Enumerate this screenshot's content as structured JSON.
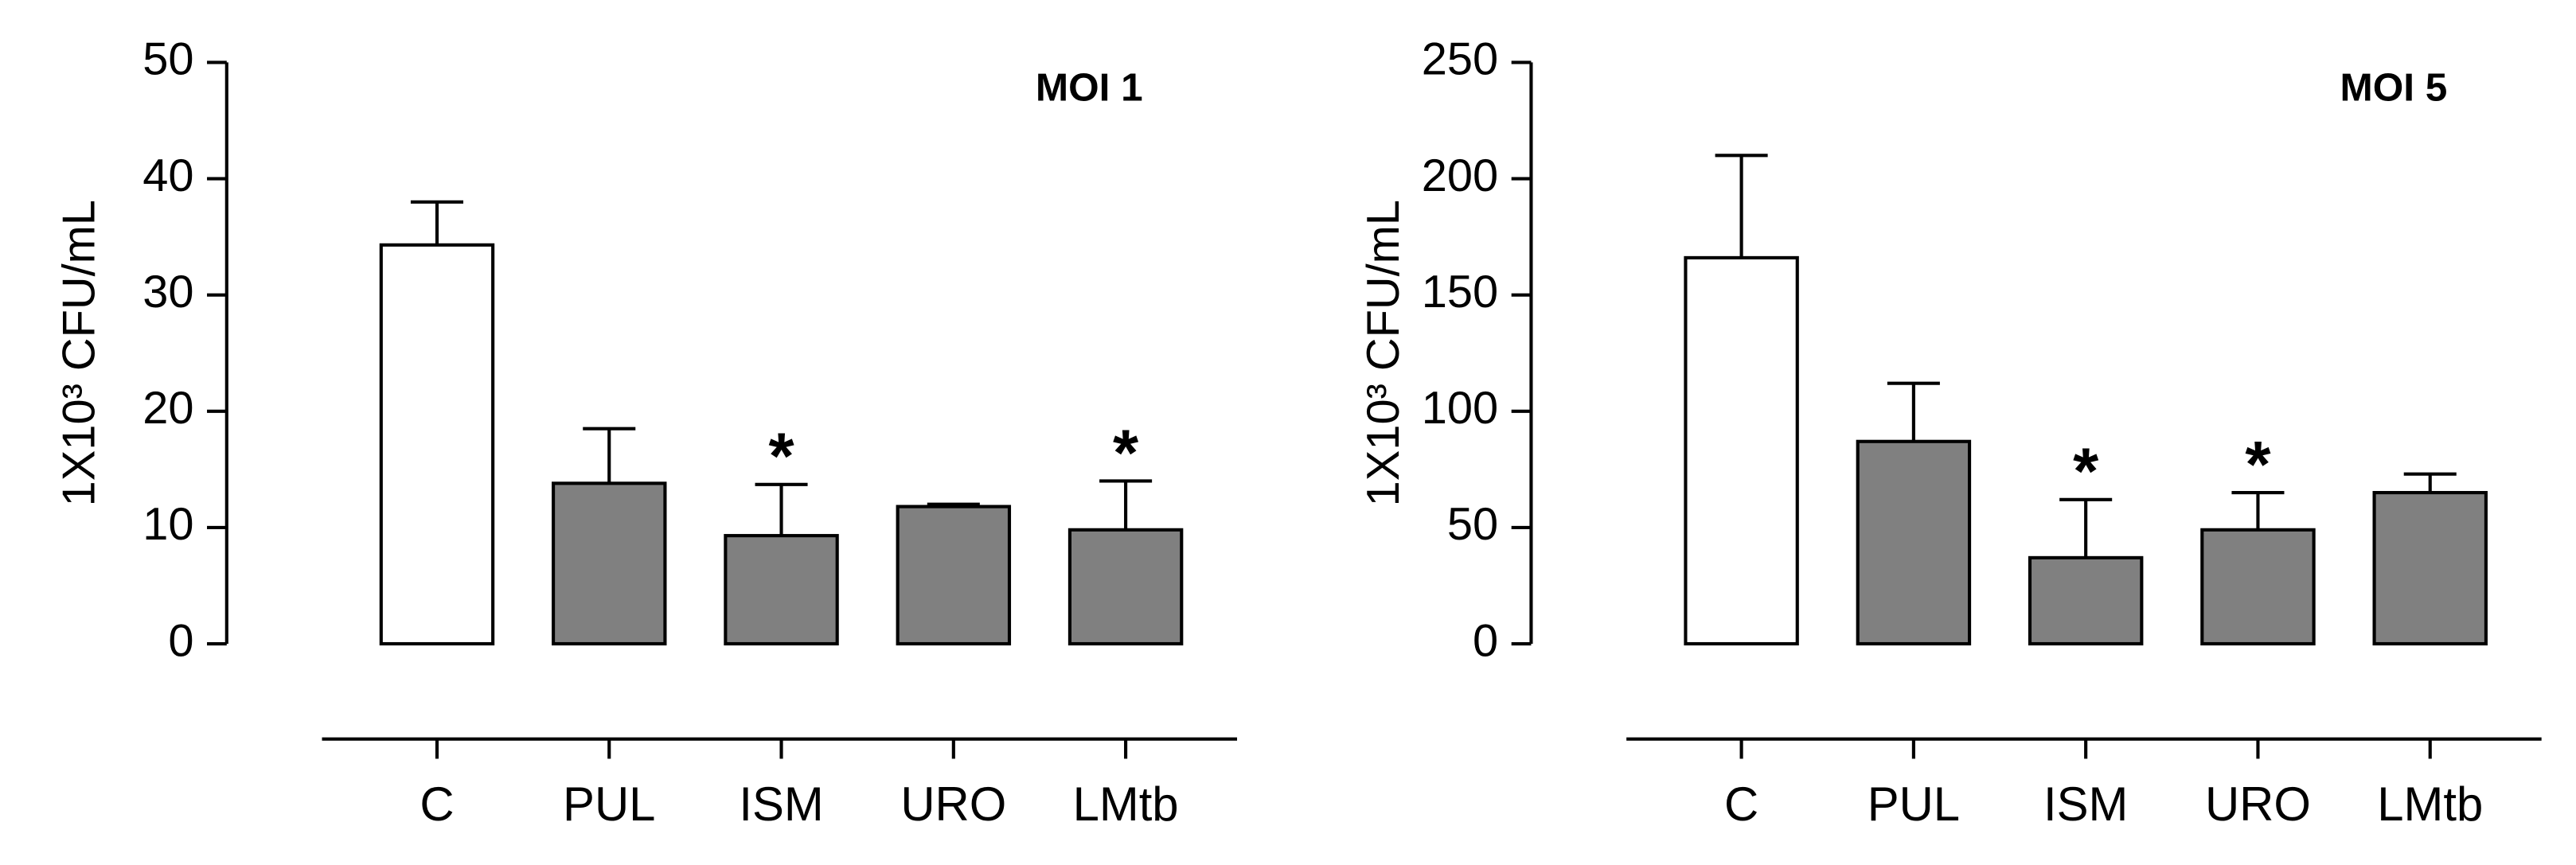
{
  "chart_data": [
    {
      "type": "bar",
      "title": "MOI 1",
      "y_label": "1X10³ CFU/mL",
      "categories": [
        "C",
        "PUL",
        "ISM",
        "URO",
        "LMtb"
      ],
      "values": [
        34.3,
        13.8,
        9.3,
        11.8,
        9.8
      ],
      "errors": [
        3.7,
        4.7,
        4.4,
        0.2,
        4.2
      ],
      "colors": [
        "#ffffff",
        "#808080",
        "#808080",
        "#808080",
        "#808080"
      ],
      "ylim": [
        0,
        50
      ],
      "yticks": [
        0,
        10,
        20,
        30,
        40,
        50
      ],
      "annotations": [
        {
          "text": "*",
          "category": "ISM"
        },
        {
          "text": "*",
          "category": "LMtb"
        }
      ]
    },
    {
      "type": "bar",
      "title": "MOI 5",
      "y_label": "1X10³ CFU/mL",
      "categories": [
        "C",
        "PUL",
        "ISM",
        "URO",
        "LMtb"
      ],
      "values": [
        166,
        87,
        37,
        49,
        65
      ],
      "errors": [
        44,
        25,
        25,
        16,
        8
      ],
      "colors": [
        "#ffffff",
        "#808080",
        "#808080",
        "#808080",
        "#808080"
      ],
      "ylim": [
        0,
        250
      ],
      "yticks": [
        0,
        50,
        100,
        150,
        200,
        250
      ],
      "annotations": [
        {
          "text": "*",
          "category": "ISM"
        },
        {
          "text": "*",
          "category": "URO"
        }
      ]
    }
  ]
}
